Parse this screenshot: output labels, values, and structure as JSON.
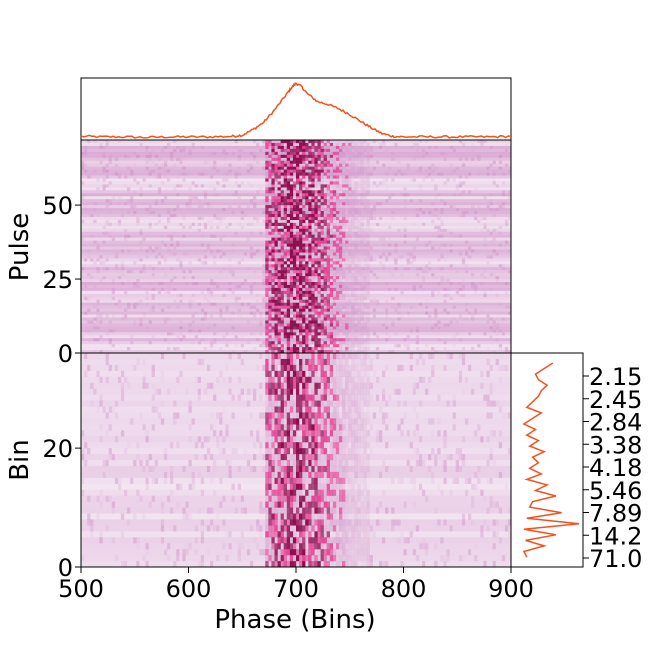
{
  "colors": {
    "profile_line": "#f4511e",
    "heat_base": "#f3e4f2",
    "heat_mid": "#c77dbd",
    "heat_hot": "#e0187a",
    "heat_max": "#8e0f50",
    "axis": "#000000"
  },
  "chart_data": [
    {
      "type": "line",
      "name": "profile",
      "x_range": [
        500,
        900
      ],
      "x": [
        500,
        520,
        540,
        560,
        580,
        600,
        620,
        640,
        650,
        660,
        670,
        680,
        690,
        695,
        700,
        705,
        710,
        720,
        730,
        740,
        750,
        760,
        770,
        780,
        790,
        800,
        820,
        840,
        860,
        880,
        900
      ],
      "y": [
        0.03,
        0.02,
        0.02,
        0.01,
        0.02,
        0.02,
        0.02,
        0.03,
        0.05,
        0.15,
        0.28,
        0.5,
        0.75,
        0.88,
        0.98,
        0.92,
        0.8,
        0.65,
        0.6,
        0.52,
        0.42,
        0.3,
        0.18,
        0.08,
        0.03,
        0.02,
        0.02,
        0.02,
        0.02,
        0.02,
        0.03
      ]
    },
    {
      "type": "heatmap",
      "name": "pulse-stack",
      "xlim": [
        500,
        900
      ],
      "ylim": [
        0,
        72
      ],
      "xlabel": "",
      "ylabel": "Pulse",
      "yticks": [
        0,
        25,
        50
      ],
      "on_pulse_window": [
        670,
        770
      ],
      "peak_phase": 700
    },
    {
      "type": "heatmap",
      "name": "bin-stack",
      "xlim": [
        500,
        900
      ],
      "ylim": [
        0,
        36
      ],
      "xlabel": "Phase (Bins)",
      "ylabel": "Bin",
      "xticks": [
        500,
        600,
        700,
        800,
        900
      ],
      "yticks": [
        0,
        20
      ],
      "on_pulse_window": [
        670,
        770
      ],
      "peak_phase": 700
    },
    {
      "type": "line",
      "name": "side-profile",
      "orientation": "vertical",
      "y_tick_labels": [
        "2.15",
        "2.45",
        "2.84",
        "3.38",
        "4.18",
        "5.46",
        "7.89",
        "14.2",
        "71.0"
      ],
      "values": [
        0.55,
        0.4,
        0.25,
        0.3,
        0.45,
        0.35,
        0.3,
        0.2,
        0.1,
        0.35,
        0.2,
        0.05,
        0.25,
        0.1,
        0.3,
        0.15,
        0.4,
        0.2,
        0.3,
        0.15,
        0.35,
        0.1,
        0.45,
        0.25,
        0.6,
        0.2,
        0.15,
        0.7,
        0.1,
        1.0,
        0.05,
        0.6,
        0.08,
        0.4,
        0.05,
        0.1
      ]
    }
  ]
}
